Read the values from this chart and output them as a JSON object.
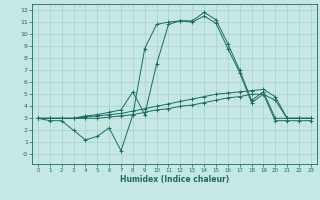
{
  "title": "",
  "xlabel": "Humidex (Indice chaleur)",
  "bg_color": "#c5e8e5",
  "grid_color": "#aecfcc",
  "line_color": "#1a6b63",
  "xlim": [
    -0.5,
    23.5
  ],
  "ylim": [
    -0.8,
    12.5
  ],
  "xticks": [
    0,
    1,
    2,
    3,
    4,
    5,
    6,
    7,
    8,
    9,
    10,
    11,
    12,
    13,
    14,
    15,
    16,
    17,
    18,
    19,
    20,
    21,
    22,
    23
  ],
  "yticks": [
    0,
    1,
    2,
    3,
    4,
    5,
    6,
    7,
    8,
    9,
    10,
    11,
    12
  ],
  "ytick_labels": [
    "-0",
    "1",
    "2",
    "3",
    "4",
    "5",
    "6",
    "7",
    "8",
    "9",
    "10",
    "11",
    "12"
  ],
  "line_main_x": [
    0,
    1,
    2,
    3,
    4,
    5,
    6,
    7,
    8,
    9,
    10,
    11,
    12,
    13,
    14,
    15,
    16,
    17,
    18,
    19,
    20,
    21,
    22,
    23
  ],
  "line_main_y": [
    3.0,
    3.0,
    3.0,
    3.0,
    3.2,
    3.3,
    3.5,
    3.7,
    5.2,
    3.3,
    7.5,
    10.8,
    11.1,
    11.1,
    11.8,
    11.2,
    9.2,
    7.0,
    4.5,
    5.2,
    3.0,
    3.0,
    3.0,
    3.0
  ],
  "line_dip_x": [
    0,
    1,
    2,
    3,
    4,
    5,
    6,
    7,
    8,
    9,
    10,
    11,
    12,
    13,
    14,
    15,
    16,
    17,
    18,
    19,
    20,
    21,
    22,
    23
  ],
  "line_dip_y": [
    3.0,
    2.8,
    2.8,
    2.0,
    1.2,
    1.5,
    2.2,
    0.3,
    3.3,
    8.8,
    10.8,
    11.0,
    11.1,
    11.0,
    11.5,
    10.9,
    8.8,
    6.8,
    4.3,
    5.0,
    2.8,
    2.8,
    2.8,
    2.8
  ],
  "line_flat1_x": [
    0,
    1,
    2,
    3,
    4,
    5,
    6,
    7,
    8,
    9,
    10,
    11,
    12,
    13,
    14,
    15,
    16,
    17,
    18,
    19,
    20,
    21,
    22,
    23
  ],
  "line_flat1_y": [
    3.0,
    3.0,
    3.0,
    3.0,
    3.1,
    3.2,
    3.3,
    3.4,
    3.6,
    3.8,
    4.0,
    4.2,
    4.4,
    4.6,
    4.8,
    5.0,
    5.1,
    5.2,
    5.3,
    5.4,
    4.8,
    3.0,
    3.0,
    3.0
  ],
  "line_flat2_x": [
    0,
    1,
    2,
    3,
    4,
    5,
    6,
    7,
    8,
    9,
    10,
    11,
    12,
    13,
    14,
    15,
    16,
    17,
    18,
    19,
    20,
    21,
    22,
    23
  ],
  "line_flat2_y": [
    3.0,
    3.0,
    3.0,
    3.0,
    3.0,
    3.0,
    3.1,
    3.2,
    3.3,
    3.5,
    3.7,
    3.8,
    4.0,
    4.1,
    4.3,
    4.5,
    4.7,
    4.8,
    5.0,
    5.0,
    4.5,
    3.0,
    3.0,
    3.0
  ]
}
